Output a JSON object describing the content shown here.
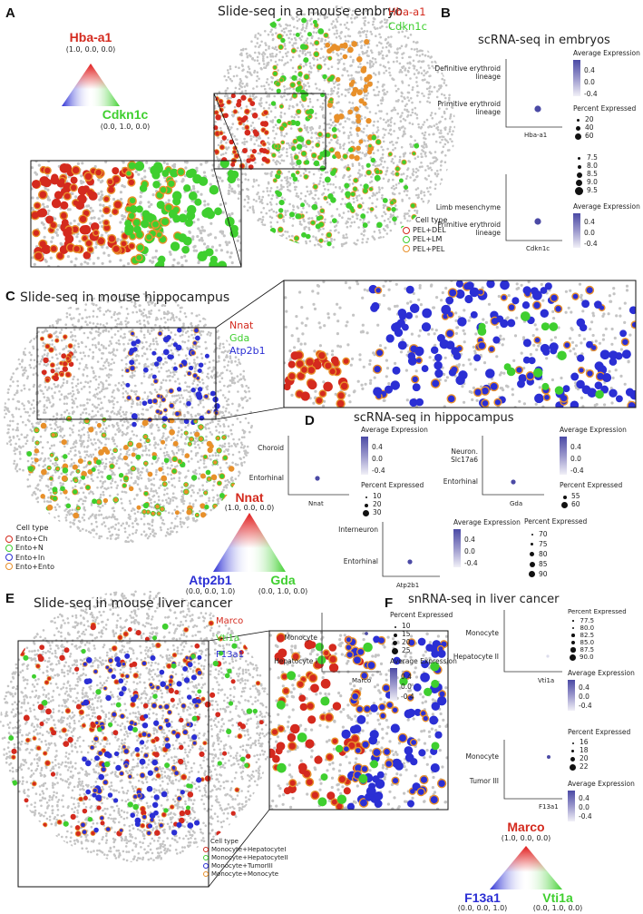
{
  "panels": {
    "A": {
      "label": "A",
      "title": "Slide-seq in a mouse embryo",
      "genes": [
        "Hba-a1",
        "Cdkn1c"
      ],
      "tri_top": {
        "name": "Hba-a1",
        "coord": "(1.0, 0.0, 0.0)"
      },
      "tri_right": {
        "name": "Cdkn1c",
        "coord": "(0.0, 1.0, 0.0)"
      },
      "legend_title": "Cell type",
      "legend": [
        "PEL+DEL",
        "PEL+LM",
        "PEL+PEL"
      ]
    },
    "B": {
      "label": "B",
      "title": "scRNA-seq in embryos",
      "plot1": {
        "rows": [
          "Definitive erythroid lineage",
          "Primitive erythroid lineage"
        ],
        "gene": "Hba-a1"
      },
      "plot2": {
        "rows": [
          "Limb mesenchyme",
          "Primitive erythroid lineage"
        ],
        "gene": "Cdkn1c"
      },
      "avg_title": "Average Expression",
      "avg_ticks": [
        "0.4",
        "0.0",
        "-0.4"
      ],
      "pct_title": "Percent Expressed",
      "pct1": [
        "20",
        "40",
        "60"
      ],
      "pct2": [
        "7.5",
        "8.0",
        "8.5",
        "9.0",
        "9.5"
      ]
    },
    "C": {
      "label": "C",
      "title": "Slide-seq in mouse hippocampus",
      "genes": [
        "Nnat",
        "Gda",
        "Atp2b1"
      ],
      "legend_title": "Cell type",
      "legend": [
        "Ento+Ch",
        "Ento+N",
        "Ento+In",
        "Ento+Ento"
      ],
      "tri_top": {
        "name": "Nnat",
        "coord": "(1.0, 0.0, 0.0)"
      },
      "tri_left": {
        "name": "Atp2b1",
        "coord": "(0.0, 0.0, 1.0)"
      },
      "tri_right": {
        "name": "Gda",
        "coord": "(0.0, 1.0, 0.0)"
      }
    },
    "D": {
      "label": "D",
      "title": "scRNA-seq in hippocampus",
      "plot1": {
        "rows": [
          "Choroid",
          "Entorhinal"
        ],
        "gene": "Nnat"
      },
      "plot2": {
        "rows": [
          "Neuron.\nSlc17a6",
          "Entorhinal"
        ],
        "gene": "Gda"
      },
      "plot3": {
        "rows": [
          "Interneuron",
          "Entorhinal"
        ],
        "gene": "Atp2b1"
      },
      "avg_title": "Average Expression",
      "avg_ticks": [
        "0.4",
        "0.0",
        "-0.4"
      ],
      "pct_title": "Percent Expressed",
      "pct1": [
        "10",
        "20",
        "30"
      ],
      "pct2": [
        "55",
        "60"
      ],
      "pct3": [
        "70",
        "75",
        "80",
        "85",
        "90"
      ]
    },
    "E": {
      "label": "E",
      "title": "Slide-seq in mouse liver cancer",
      "genes": [
        "Marco",
        "Vti1a",
        "F13a1"
      ],
      "legend_title": "Cell type",
      "legend": [
        "Monocyte+HepatocyteI",
        "Monocyte+HepatocyteII",
        "Monocyte+TumorIII",
        "Monocyte+Monocyte"
      ]
    },
    "F": {
      "label": "F",
      "title": "snRNA-seq in liver cancer",
      "plot1": {
        "rows": [
          "Monocyte",
          "Hepatocyte I"
        ],
        "gene": "Marco"
      },
      "plot2": {
        "rows": [
          "Monocyte",
          "Hepatocyte II"
        ],
        "gene": "Vti1a"
      },
      "plot3": {
        "rows": [
          "Monocyte",
          "Tumor III"
        ],
        "gene": "F13a1"
      },
      "avg_title": "Average Expression",
      "avg_ticks": [
        "0.4",
        "0.0",
        "-0.4"
      ],
      "pct_title": "Percent Expressed",
      "pct1": [
        "10",
        "15",
        "20",
        "25"
      ],
      "pct2": [
        "77.5",
        "80.0",
        "82.5",
        "85.0",
        "87.5",
        "90.0"
      ],
      "pct3": [
        "16",
        "18",
        "20",
        "22"
      ],
      "tri_top": {
        "name": "Marco",
        "coord": "(1.0, 0.0, 0.0)"
      },
      "tri_left": {
        "name": "F13a1",
        "coord": "(0.0, 0.0, 1.0)"
      },
      "tri_right": {
        "name": "Vti1a",
        "coord": "(0.0, 1.0, 0.0)"
      }
    }
  },
  "colors": {
    "red": "#d42a1e",
    "green": "#3fcf2f",
    "blue": "#2b2fd4",
    "orange": "#e8902a",
    "gray": "#c4c4c4",
    "purple": "#4b4aa5"
  }
}
